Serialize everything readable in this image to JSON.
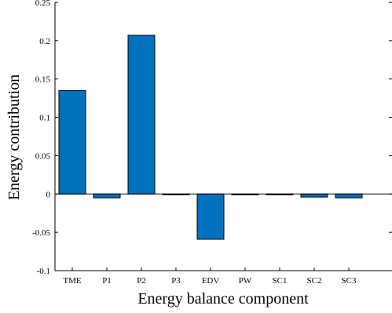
{
  "chart_data": {
    "type": "bar",
    "categories": [
      "TME",
      "P1",
      "P2",
      "P3",
      "EDV",
      "PW",
      "SC1",
      "SC2",
      "SC3"
    ],
    "values": [
      0.135,
      -0.005,
      0.207,
      -0.0008,
      -0.059,
      -0.0008,
      -0.0008,
      -0.004,
      -0.005
    ],
    "xlabel": "Energy balance component",
    "ylabel": "Energy contribution",
    "ylim": [
      -0.1,
      0.25
    ],
    "yticks": [
      -0.1,
      -0.05,
      0,
      0.05,
      0.1,
      0.15,
      0.2,
      0.25
    ],
    "ytick_labels": [
      "-0.1",
      "-0.05",
      "0",
      "0.05",
      "0.1",
      "0.15",
      "0.2",
      "0.25"
    ],
    "bar_color": "#0072BD",
    "grid": false,
    "legend": "none"
  }
}
